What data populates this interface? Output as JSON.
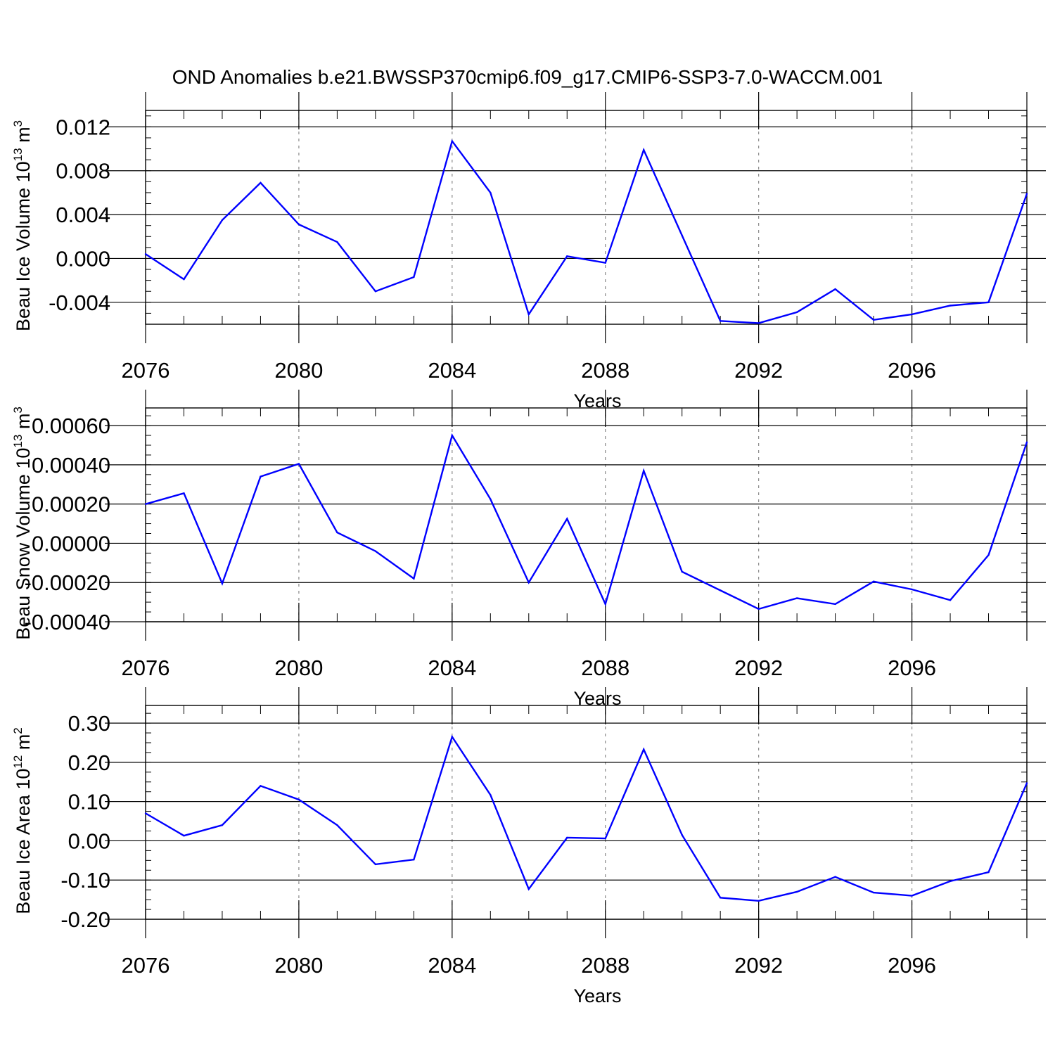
{
  "chart_data": {
    "title": "OND Anomalies b.e21.BWSSP370cmip6.f09_g17.CMIP6-SSP3-7.0-WACCM.001",
    "panels": [
      {
        "type": "line",
        "ylabel": "Beau Ice Volume 10",
        "ylabel_exp": "13",
        "ylabel_unit": " m",
        "ylabel_unit_exp": "3",
        "xlabel": "Years",
        "xlim": [
          2076,
          2099
        ],
        "ylim": [
          -0.006,
          0.0135
        ],
        "yticks": [
          0.012,
          0.008,
          0.004,
          0.0,
          -0.004
        ],
        "ytick_labels": [
          "0.012",
          "0.008",
          "0.004",
          "0.000",
          "-0.004"
        ],
        "yminor_step": 0.001,
        "xticks": [
          2076,
          2080,
          2084,
          2088,
          2092,
          2096
        ],
        "xtick_labels": [
          "2076",
          "2080",
          "2084",
          "2088",
          "2092",
          "2096"
        ],
        "gridlines_x": [
          2080,
          2084,
          2088,
          2092,
          2096
        ],
        "series": [
          {
            "color": "#0000ff",
            "x": [
              2076,
              2077,
              2078,
              2079,
              2080,
              2081,
              2082,
              2083,
              2084,
              2085,
              2086,
              2087,
              2088,
              2089,
              2090,
              2091,
              2092,
              2093,
              2094,
              2095,
              2096,
              2097,
              2098,
              2099
            ],
            "values": [
              0.0004,
              -0.0019,
              0.0035,
              0.0069,
              0.0031,
              0.0015,
              -0.003,
              -0.0017,
              0.0107,
              0.006,
              -0.0051,
              0.0002,
              -0.0004,
              0.0099,
              0.0021,
              -0.0057,
              -0.0059,
              -0.0049,
              -0.0028,
              -0.0056,
              -0.0051,
              -0.0043,
              -0.004,
              0.0059
            ]
          }
        ]
      },
      {
        "type": "line",
        "ylabel": "Beau Snow Volume 10",
        "ylabel_exp": "13",
        "ylabel_unit": " m",
        "ylabel_unit_exp": "3",
        "xlabel": "Years",
        "xlim": [
          2076,
          2099
        ],
        "ylim": [
          -0.0004,
          0.00069
        ],
        "yticks": [
          0.0006,
          0.0004,
          0.0002,
          0.0,
          -0.0002,
          -0.0004
        ],
        "ytick_labels": [
          "0.00060",
          "0.00040",
          "0.00020",
          "0.00000",
          "-0.00020",
          "-0.00040"
        ],
        "yminor_step": 5e-05,
        "xticks": [
          2076,
          2080,
          2084,
          2088,
          2092,
          2096
        ],
        "xtick_labels": [
          "2076",
          "2080",
          "2084",
          "2088",
          "2092",
          "2096"
        ],
        "gridlines_x": [
          2080,
          2084,
          2088,
          2092,
          2096
        ],
        "series": [
          {
            "color": "#0000ff",
            "x": [
              2076,
              2077,
              2078,
              2079,
              2080,
              2081,
              2082,
              2083,
              2084,
              2085,
              2086,
              2087,
              2088,
              2089,
              2090,
              2091,
              2092,
              2093,
              2094,
              2095,
              2096,
              2097,
              2098,
              2099
            ],
            "values": [
              0.0002,
              0.000255,
              -0.000205,
              0.00034,
              0.000405,
              5.5e-05,
              -4e-05,
              -0.00018,
              0.00055,
              0.000225,
              -0.0002,
              0.000125,
              -0.00031,
              0.00037,
              -0.000145,
              -0.00024,
              -0.000335,
              -0.00028,
              -0.00031,
              -0.000195,
              -0.000235,
              -0.00029,
              -6e-05,
              0.000515
            ]
          }
        ]
      },
      {
        "type": "line",
        "ylabel": "Beau Ice Area 10",
        "ylabel_exp": "12",
        "ylabel_unit": " m",
        "ylabel_unit_exp": "2",
        "xlabel": "Years",
        "xlim": [
          2076,
          2099
        ],
        "ylim": [
          -0.2,
          0.345
        ],
        "yticks": [
          0.3,
          0.2,
          0.1,
          0.0,
          -0.1,
          -0.2
        ],
        "ytick_labels": [
          "0.30",
          "0.20",
          "0.10",
          "0.00",
          "-0.10",
          "-0.20"
        ],
        "yminor_step": 0.025,
        "xticks": [
          2076,
          2080,
          2084,
          2088,
          2092,
          2096
        ],
        "xtick_labels": [
          "2076",
          "2080",
          "2084",
          "2088",
          "2092",
          "2096"
        ],
        "gridlines_x": [
          2080,
          2084,
          2088,
          2092,
          2096
        ],
        "series": [
          {
            "color": "#0000ff",
            "x": [
              2076,
              2077,
              2078,
              2079,
              2080,
              2081,
              2082,
              2083,
              2084,
              2085,
              2086,
              2087,
              2088,
              2089,
              2090,
              2091,
              2092,
              2093,
              2094,
              2095,
              2096,
              2097,
              2098,
              2099
            ],
            "values": [
              0.07,
              0.013,
              0.04,
              0.14,
              0.105,
              0.04,
              -0.06,
              -0.048,
              0.265,
              0.117,
              -0.123,
              0.008,
              0.006,
              0.233,
              0.015,
              -0.145,
              -0.153,
              -0.13,
              -0.092,
              -0.132,
              -0.14,
              -0.103,
              -0.08,
              0.147
            ]
          }
        ]
      }
    ]
  }
}
